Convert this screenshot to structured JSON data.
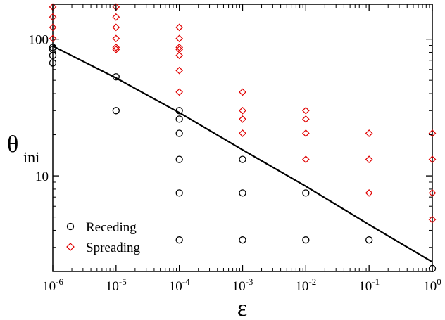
{
  "chart_data": {
    "type": "scatter",
    "xscale": "log",
    "yscale": "log",
    "xlim": [
      1e-06,
      1
    ],
    "ylim": [
      2,
      180
    ],
    "xlabel": "ε",
    "ylabel": {
      "main": "θ",
      "sub": "ini"
    },
    "x_ticks": [
      {
        "value": 1e-06,
        "base": "10",
        "exp": "-6"
      },
      {
        "value": 1e-05,
        "base": "10",
        "exp": "-5"
      },
      {
        "value": 0.0001,
        "base": "10",
        "exp": "-4"
      },
      {
        "value": 0.001,
        "base": "10",
        "exp": "-3"
      },
      {
        "value": 0.01,
        "base": "10",
        "exp": "-2"
      },
      {
        "value": 0.1,
        "base": "10",
        "exp": "-1"
      },
      {
        "value": 1,
        "base": "10",
        "exp": "0"
      }
    ],
    "y_ticks": [
      {
        "value": 10,
        "label": "10"
      },
      {
        "value": 100,
        "label": "100"
      }
    ],
    "grid": false,
    "legend_position": "bottom-left",
    "series": [
      {
        "name": "Receding",
        "marker": "circle",
        "color": "#000000",
        "points": [
          [
            1e-06,
            87
          ],
          [
            1e-06,
            84
          ],
          [
            1e-06,
            76
          ],
          [
            1e-06,
            67
          ],
          [
            1e-05,
            53
          ],
          [
            1e-05,
            30
          ],
          [
            0.0001,
            30
          ],
          [
            0.0001,
            26
          ],
          [
            0.0001,
            20.5
          ],
          [
            0.0001,
            13.2
          ],
          [
            0.0001,
            7.5
          ],
          [
            0.0001,
            3.4
          ],
          [
            0.001,
            13.2
          ],
          [
            0.001,
            7.5
          ],
          [
            0.001,
            3.4
          ],
          [
            0.01,
            7.5
          ],
          [
            0.01,
            3.4
          ],
          [
            0.1,
            3.4
          ],
          [
            1,
            2.1
          ]
        ]
      },
      {
        "name": "Spreading",
        "marker": "diamond",
        "color": "#e00000",
        "points": [
          [
            1e-06,
            172
          ],
          [
            1e-06,
            145
          ],
          [
            1e-06,
            122
          ],
          [
            1e-06,
            101
          ],
          [
            1e-05,
            172
          ],
          [
            1e-05,
            145
          ],
          [
            1e-05,
            122
          ],
          [
            1e-05,
            101
          ],
          [
            1e-05,
            87
          ],
          [
            1e-05,
            84
          ],
          [
            0.0001,
            122
          ],
          [
            0.0001,
            101
          ],
          [
            0.0001,
            87
          ],
          [
            0.0001,
            84
          ],
          [
            0.0001,
            76
          ],
          [
            0.0001,
            59
          ],
          [
            0.0001,
            41
          ],
          [
            0.001,
            41
          ],
          [
            0.001,
            30
          ],
          [
            0.001,
            26
          ],
          [
            0.001,
            20.5
          ],
          [
            0.01,
            30
          ],
          [
            0.01,
            26
          ],
          [
            0.01,
            20.5
          ],
          [
            0.01,
            13.2
          ],
          [
            0.1,
            20.5
          ],
          [
            0.1,
            13.2
          ],
          [
            0.1,
            7.5
          ],
          [
            1,
            20.5
          ],
          [
            1,
            13.2
          ],
          [
            1,
            7.5
          ],
          [
            1,
            4.8
          ]
        ]
      }
    ],
    "fit_line": {
      "color": "#000000",
      "points": [
        [
          1e-06,
          89
        ],
        [
          1e-05,
          52
        ],
        [
          0.0001,
          29
        ],
        [
          0.001,
          15.5
        ],
        [
          0.01,
          8.4
        ],
        [
          0.1,
          4.4
        ],
        [
          1,
          2.35
        ]
      ]
    }
  }
}
